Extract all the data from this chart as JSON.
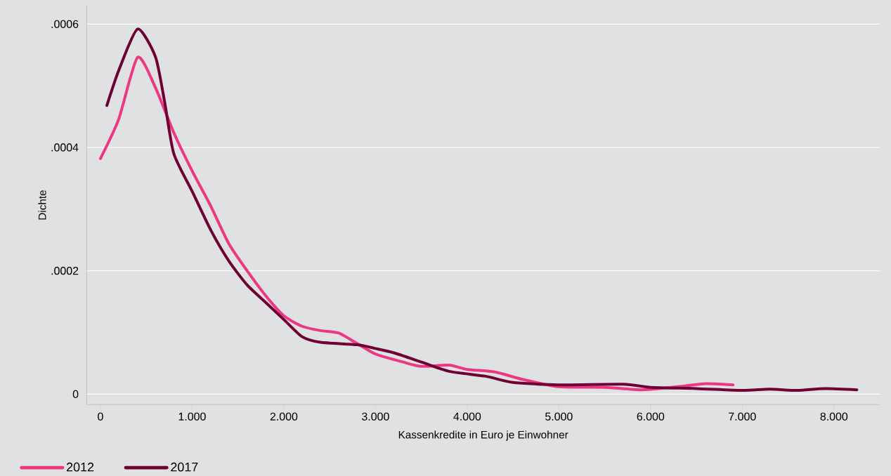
{
  "chart_data": {
    "type": "line",
    "xlabel": "Kassenkredite in Euro je Einwohner",
    "ylabel": "Dichte",
    "xlim": [
      -150,
      8500
    ],
    "ylim": [
      -1.7e-05,
      0.00063
    ],
    "xticks": [
      {
        "value": 0,
        "label": "0"
      },
      {
        "value": 1000,
        "label": "1.000"
      },
      {
        "value": 2000,
        "label": "2.000"
      },
      {
        "value": 3000,
        "label": "3.000"
      },
      {
        "value": 4000,
        "label": "4.000"
      },
      {
        "value": 5000,
        "label": "5.000"
      },
      {
        "value": 6000,
        "label": "6.000"
      },
      {
        "value": 7000,
        "label": "7.000"
      },
      {
        "value": 8000,
        "label": "8.000"
      }
    ],
    "yticks": [
      {
        "value": 0,
        "label": "0"
      },
      {
        "value": 0.0002,
        "label": ".0002"
      },
      {
        "value": 0.0004,
        "label": ".0004"
      },
      {
        "value": 0.0006,
        "label": ".0006"
      }
    ],
    "grid": "y",
    "legend": "bottom left",
    "marker": "none",
    "line_style": "solid",
    "series": [
      {
        "name": "2012",
        "color": "#ec3782",
        "x": [
          0,
          200,
          405,
          600,
          800,
          1000,
          1200,
          1400,
          1600,
          1800,
          2000,
          2200,
          2400,
          2600,
          2800,
          3000,
          3300,
          3500,
          3800,
          4000,
          4300,
          4600,
          5000,
          5500,
          5900,
          6300,
          6600,
          6900
        ],
        "values": [
          0.000382,
          0.000446,
          0.000546,
          0.000497,
          0.000424,
          0.000362,
          0.000306,
          0.000244,
          0.0002,
          0.00016,
          0.000127,
          0.00011,
          0.000103,
          9.9e-05,
          8.2e-05,
          6.5e-05,
          5.2e-05,
          4.5e-05,
          4.7e-05,
          4e-05,
          3.6e-05,
          2.4e-05,
          1.2e-05,
          1.1e-05,
          7e-06,
          1.2e-05,
          1.7e-05,
          1.5e-05
        ]
      },
      {
        "name": "2017",
        "color": "#6e0033",
        "x": [
          70,
          200,
          405,
          600,
          700,
          800,
          1000,
          1200,
          1400,
          1600,
          1800,
          2000,
          2200,
          2400,
          2800,
          3000,
          3200,
          3500,
          3800,
          4200,
          4500,
          5000,
          5700,
          6000,
          6500,
          7000,
          7300,
          7600,
          7900,
          8250
        ],
        "values": [
          0.000468,
          0.000525,
          0.000592,
          0.000547,
          0.000474,
          0.00039,
          0.000329,
          0.000267,
          0.000216,
          0.000177,
          0.000149,
          0.000121,
          9.3e-05,
          8.4e-05,
          8e-05,
          7.4e-05,
          6.7e-05,
          5.2e-05,
          3.7e-05,
          2.9e-05,
          1.9e-05,
          1.5e-05,
          1.6e-05,
          1.1e-05,
          9e-06,
          6e-06,
          8e-06,
          6e-06,
          9e-06,
          7e-06
        ]
      }
    ]
  }
}
